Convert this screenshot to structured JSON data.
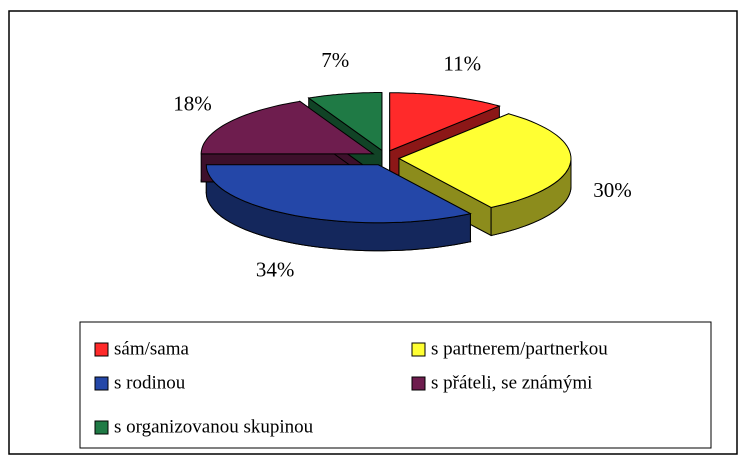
{
  "chart_data": {
    "type": "pie",
    "categories": [
      "sám/sama",
      "s partnerem/partnerkou",
      "s rodinou",
      "s přáteli, se známými",
      "s organizovanou skupinou"
    ],
    "values": [
      11,
      30,
      34,
      18,
      7
    ],
    "value_labels": [
      "11%",
      "30%",
      "34%",
      "18%",
      "7%"
    ],
    "colors": [
      "#ff2a2a",
      "#ffff33",
      "#2447a8",
      "#6e1d4e",
      "#1f7a45"
    ],
    "legend": "bottom"
  }
}
